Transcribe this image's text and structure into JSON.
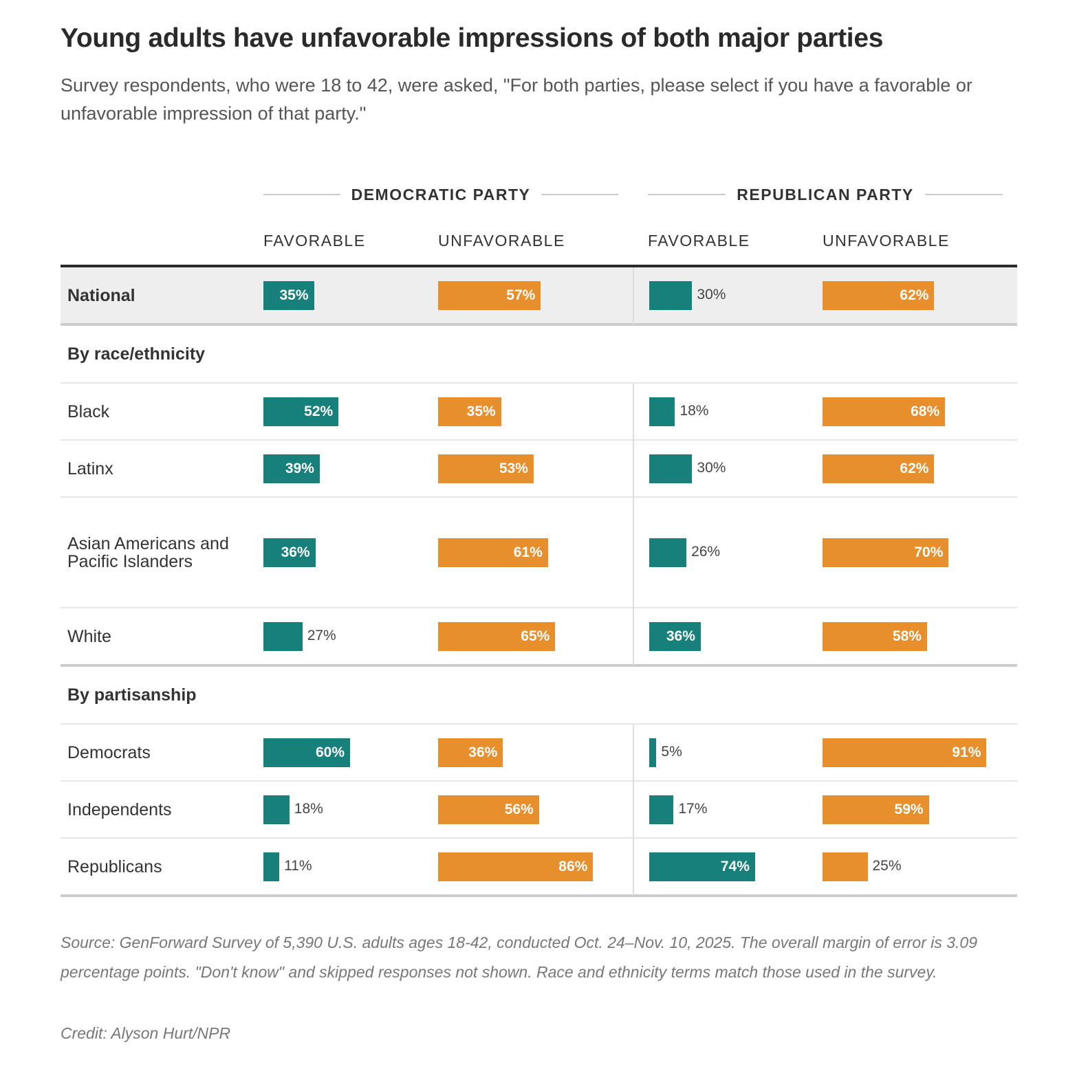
{
  "title": "Young adults have unfavorable impressions of both major parties",
  "subtitle": "Survey respondents, who were 18 to 42, were asked, \"For both parties, please select if you have a favorable or unfavorable impression of that party.\"",
  "chart_data": {
    "type": "table",
    "groups": [
      "DEMOCRATIC PARTY",
      "REPUBLICAN PARTY"
    ],
    "columns": [
      "FAVORABLE",
      "UNFAVORABLE",
      "FAVORABLE",
      "UNFAVORABLE"
    ],
    "colors": {
      "favorable": "#17807b",
      "unfavorable": "#e68f2c"
    },
    "rows": [
      {
        "kind": "national",
        "label": "National",
        "values": [
          35,
          57,
          30,
          62
        ]
      },
      {
        "kind": "section",
        "label": "By race/ethnicity"
      },
      {
        "kind": "data",
        "label": "Black",
        "values": [
          52,
          35,
          18,
          68
        ]
      },
      {
        "kind": "data",
        "label": "Latinx",
        "values": [
          39,
          53,
          30,
          62
        ]
      },
      {
        "kind": "data",
        "label": "Asian Americans and Pacific Islanders",
        "values": [
          36,
          61,
          26,
          70
        ],
        "tall": true
      },
      {
        "kind": "data",
        "label": "White",
        "values": [
          27,
          65,
          36,
          58
        ],
        "endsec": true
      },
      {
        "kind": "section",
        "label": "By partisanship"
      },
      {
        "kind": "data",
        "label": "Democrats",
        "values": [
          60,
          36,
          5,
          91
        ]
      },
      {
        "kind": "data",
        "label": "Independents",
        "values": [
          18,
          56,
          17,
          59
        ]
      },
      {
        "kind": "data",
        "label": "Republicans",
        "values": [
          11,
          86,
          74,
          25
        ],
        "last": true
      }
    ]
  },
  "source": "Source: GenForward Survey of 5,390 U.S. adults ages 18-42, conducted Oct. 24–Nov. 10, 2025. The overall margin of error is 3.09 percentage points. \"Don't know\" and skipped responses not shown. Race and ethnicity terms match those used in the survey.",
  "credit": "Credit: Alyson Hurt/NPR"
}
